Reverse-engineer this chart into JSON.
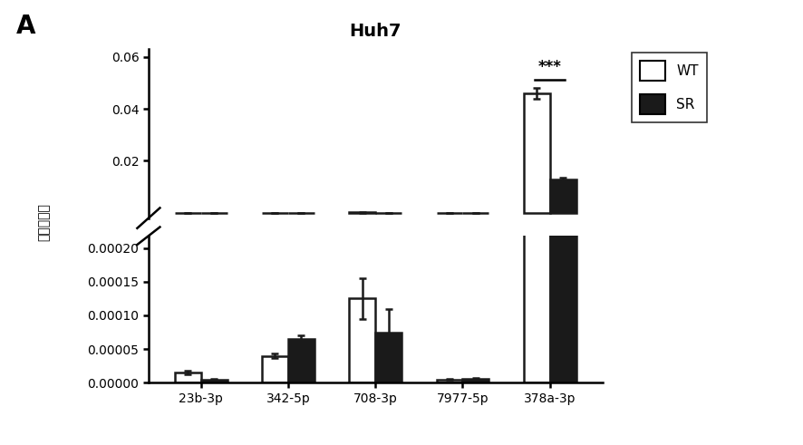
{
  "title": "Huh7",
  "panel_label": "A",
  "ylabel": "相对表达量",
  "categories": [
    "23b-3p",
    "342-5p",
    "708-3p",
    "7977-5p",
    "378a-3p"
  ],
  "wt_values": [
    1.5e-05,
    4e-05,
    0.000125,
    5e-06,
    0.046
  ],
  "sr_values": [
    5e-06,
    6.5e-05,
    7.5e-05,
    6e-06,
    0.013
  ],
  "wt_errors": [
    3e-06,
    3e-06,
    3e-05,
    1e-06,
    0.002
  ],
  "sr_errors": [
    1e-06,
    5e-06,
    3.5e-05,
    1e-06,
    0.0005
  ],
  "bar_width": 0.3,
  "wt_color": "white",
  "sr_color": "#1a1a1a",
  "edge_color": "#1a1a1a",
  "significance_label": "***",
  "ylim_lower": [
    0,
    0.000218
  ],
  "ylim_upper": [
    -0.002,
    0.063
  ],
  "upper_ticks": [
    0.0,
    0.02,
    0.04,
    0.06
  ],
  "lower_ticks": [
    0.0,
    5e-05,
    0.0001,
    0.00015,
    0.0002
  ],
  "background_color": "white",
  "linewidth": 1.8,
  "capsize": 3,
  "tick_fontsize": 10,
  "title_fontsize": 14,
  "label_fontsize": 12
}
